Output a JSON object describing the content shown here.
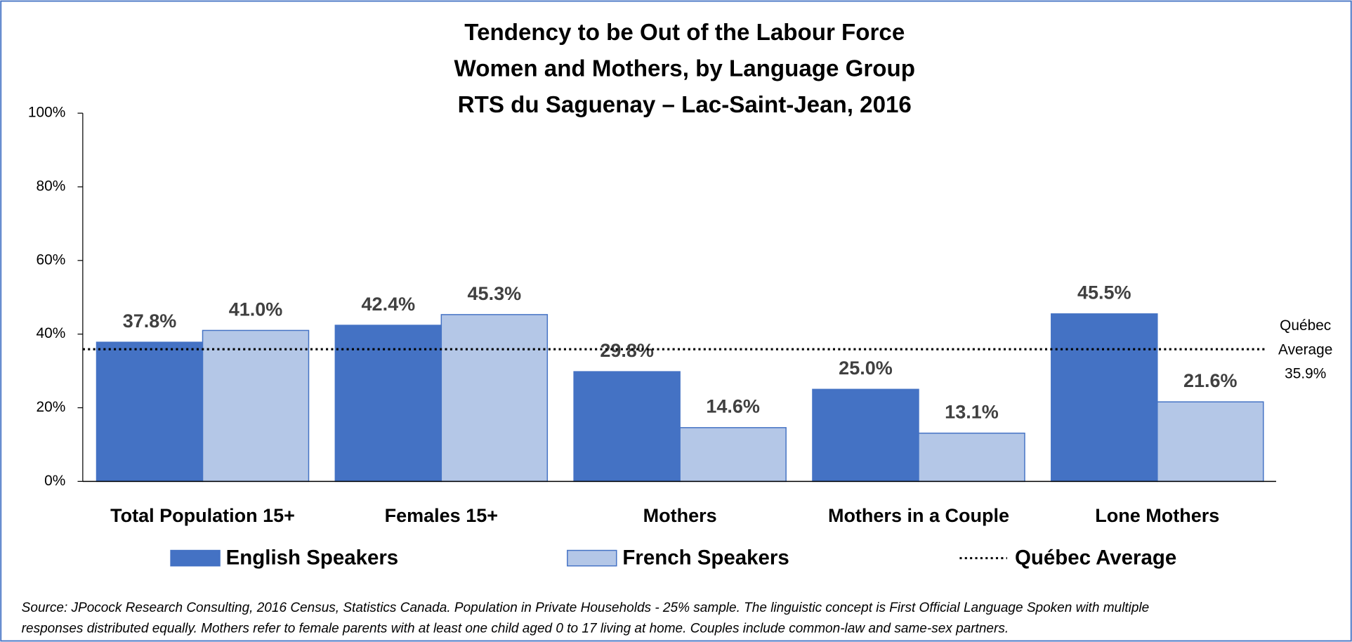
{
  "chart_data": {
    "type": "bar",
    "title": [
      "Tendency to be Out of the Labour Force",
      "Women and Mothers, by Language Group",
      "RTS du Saguenay – Lac-Saint-Jean, 2016"
    ],
    "categories": [
      "Total Population 15+",
      "Females 15+",
      "Mothers",
      "Mothers in a Couple",
      "Lone Mothers"
    ],
    "series": [
      {
        "name": "English Speakers",
        "color": "#4472c4",
        "values": [
          37.8,
          42.4,
          29.8,
          25.0,
          45.5
        ],
        "value_labels": [
          "37.8%",
          "42.4%",
          "29.8%",
          "25.0%",
          "45.5%"
        ]
      },
      {
        "name": "French Speakers",
        "color": "#b4c7e7",
        "values": [
          41.0,
          45.3,
          14.6,
          13.1,
          21.6
        ],
        "value_labels": [
          "41.0%",
          "45.3%",
          "14.6%",
          "13.1%",
          "21.6%"
        ]
      }
    ],
    "reference_line": {
      "name": "Québec Average",
      "value": 35.9,
      "label_lines": [
        "Québec",
        "Average"
      ],
      "value_label": "35.9%"
    },
    "ylim": [
      0,
      100
    ],
    "yticks": [
      {
        "value": 0,
        "label": "0%"
      },
      {
        "value": 20,
        "label": "20%"
      },
      {
        "value": 40,
        "label": "40%"
      },
      {
        "value": 60,
        "label": "60%"
      },
      {
        "value": 80,
        "label": "80%"
      },
      {
        "value": 100,
        "label": "100%"
      }
    ],
    "grid": false,
    "legend": "bottom",
    "footnote": [
      "Source: JPocock Research Consulting, 2016 Census, Statistics Canada. Population in Private Households - 25% sample. The linguistic concept is First Official Language Spoken with multiple",
      "responses distributed equally. Mothers refer to female parents with at least one child aged 0 to 17 living at home. Couples include common-law and same-sex partners."
    ]
  }
}
